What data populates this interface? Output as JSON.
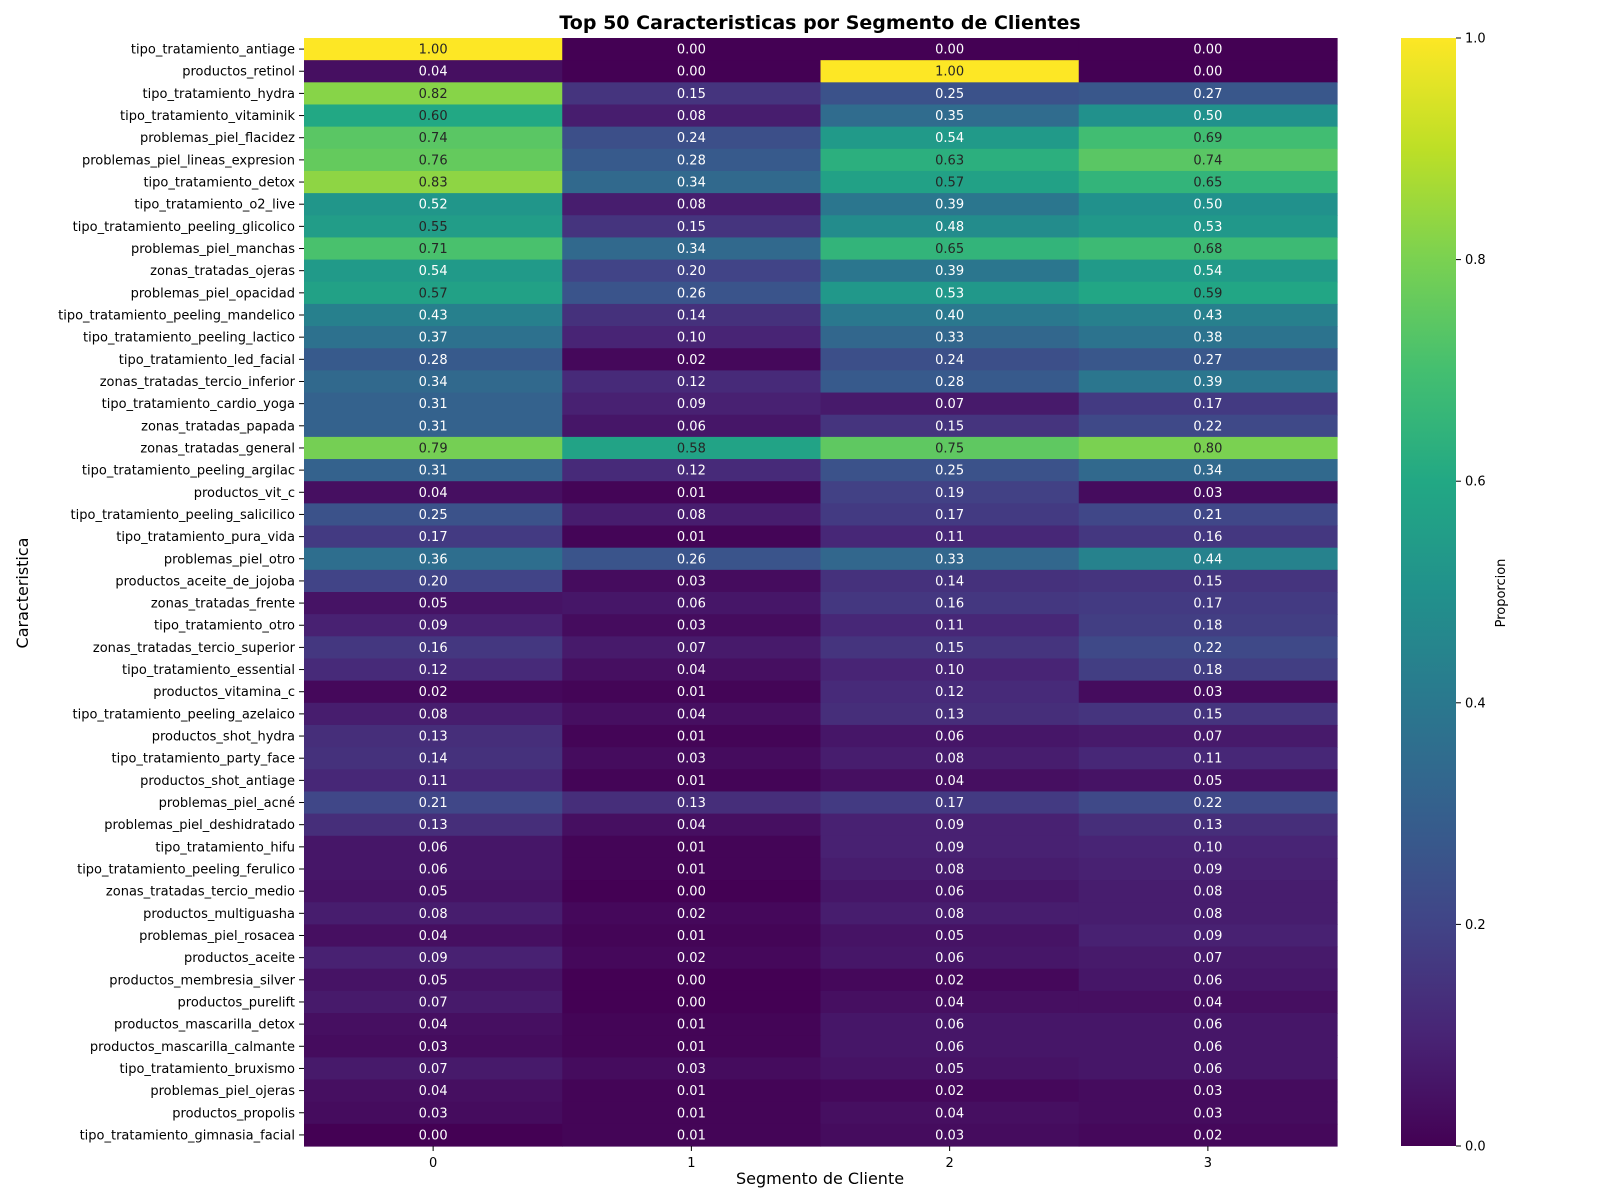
{
  "chart_data": {
    "type": "heatmap",
    "title": "Top 50 Caracteristicas por Segmento de Clientes",
    "xlabel": "Segmento de Cliente",
    "ylabel": "Caracteristica",
    "colorbar_label": "Proporcion",
    "colormap": "viridis",
    "value_range": [
      0,
      1
    ],
    "colorbar_ticks": [
      "0.0",
      "0.2",
      "0.4",
      "0.6",
      "0.8",
      "1.0"
    ],
    "x_categories": [
      "0",
      "1",
      "2",
      "3"
    ],
    "y_categories": [
      "tipo_tratamiento_antiage",
      "productos_retinol",
      "tipo_tratamiento_hydra",
      "tipo_tratamiento_vitaminik",
      "problemas_piel_flacidez",
      "problemas_piel_lineas_expresion",
      "tipo_tratamiento_detox",
      "tipo_tratamiento_o2_live",
      "tipo_tratamiento_peeling_glicolico",
      "problemas_piel_manchas",
      "zonas_tratadas_ojeras",
      "problemas_piel_opacidad",
      "tipo_tratamiento_peeling_mandelico",
      "tipo_tratamiento_peeling_lactico",
      "tipo_tratamiento_led_facial",
      "zonas_tratadas_tercio_inferior",
      "tipo_tratamiento_cardio_yoga",
      "zonas_tratadas_papada",
      "zonas_tratadas_general",
      "tipo_tratamiento_peeling_argilac",
      "productos_vit_c",
      "tipo_tratamiento_peeling_salicilico",
      "tipo_tratamiento_pura_vida",
      "problemas_piel_otro",
      "productos_aceite_de_jojoba",
      "zonas_tratadas_frente",
      "tipo_tratamiento_otro",
      "zonas_tratadas_tercio_superior",
      "tipo_tratamiento_essential",
      "productos_vitamina_c",
      "tipo_tratamiento_peeling_azelaico",
      "productos_shot_hydra",
      "tipo_tratamiento_party_face",
      "productos_shot_antiage",
      "problemas_piel_acné",
      "problemas_piel_deshidratado",
      "tipo_tratamiento_hifu",
      "tipo_tratamiento_peeling_ferulico",
      "zonas_tratadas_tercio_medio",
      "productos_multiguasha",
      "problemas_piel_rosacea",
      "productos_aceite",
      "productos_membresia_silver",
      "productos_purelift",
      "productos_mascarilla_detox",
      "productos_mascarilla_calmante",
      "tipo_tratamiento_bruxismo",
      "problemas_piel_ojeras",
      "productos_propolis",
      "tipo_tratamiento_gimnasia_facial"
    ],
    "values": [
      [
        1.0,
        0.0,
        0.0,
        0.0
      ],
      [
        0.04,
        0.0,
        1.0,
        0.0
      ],
      [
        0.82,
        0.15,
        0.25,
        0.27
      ],
      [
        0.6,
        0.08,
        0.35,
        0.5
      ],
      [
        0.74,
        0.24,
        0.54,
        0.69
      ],
      [
        0.76,
        0.28,
        0.63,
        0.74
      ],
      [
        0.83,
        0.34,
        0.57,
        0.65
      ],
      [
        0.52,
        0.08,
        0.39,
        0.5
      ],
      [
        0.55,
        0.15,
        0.48,
        0.53
      ],
      [
        0.71,
        0.34,
        0.65,
        0.68
      ],
      [
        0.54,
        0.2,
        0.39,
        0.54
      ],
      [
        0.57,
        0.26,
        0.53,
        0.59
      ],
      [
        0.43,
        0.14,
        0.4,
        0.43
      ],
      [
        0.37,
        0.1,
        0.33,
        0.38
      ],
      [
        0.28,
        0.02,
        0.24,
        0.27
      ],
      [
        0.34,
        0.12,
        0.28,
        0.39
      ],
      [
        0.31,
        0.09,
        0.07,
        0.17
      ],
      [
        0.31,
        0.06,
        0.15,
        0.22
      ],
      [
        0.79,
        0.58,
        0.75,
        0.8
      ],
      [
        0.31,
        0.12,
        0.25,
        0.34
      ],
      [
        0.04,
        0.01,
        0.19,
        0.03
      ],
      [
        0.25,
        0.08,
        0.17,
        0.21
      ],
      [
        0.17,
        0.01,
        0.11,
        0.16
      ],
      [
        0.36,
        0.26,
        0.33,
        0.44
      ],
      [
        0.2,
        0.03,
        0.14,
        0.15
      ],
      [
        0.05,
        0.06,
        0.16,
        0.17
      ],
      [
        0.09,
        0.03,
        0.11,
        0.18
      ],
      [
        0.16,
        0.07,
        0.15,
        0.22
      ],
      [
        0.12,
        0.04,
        0.1,
        0.18
      ],
      [
        0.02,
        0.01,
        0.12,
        0.03
      ],
      [
        0.08,
        0.04,
        0.13,
        0.15
      ],
      [
        0.13,
        0.01,
        0.06,
        0.07
      ],
      [
        0.14,
        0.03,
        0.08,
        0.11
      ],
      [
        0.11,
        0.01,
        0.04,
        0.05
      ],
      [
        0.21,
        0.13,
        0.17,
        0.22
      ],
      [
        0.13,
        0.04,
        0.09,
        0.13
      ],
      [
        0.06,
        0.01,
        0.09,
        0.1
      ],
      [
        0.06,
        0.01,
        0.08,
        0.09
      ],
      [
        0.05,
        0.0,
        0.06,
        0.08
      ],
      [
        0.08,
        0.02,
        0.08,
        0.08
      ],
      [
        0.04,
        0.01,
        0.05,
        0.09
      ],
      [
        0.09,
        0.02,
        0.06,
        0.07
      ],
      [
        0.05,
        0.0,
        0.02,
        0.06
      ],
      [
        0.07,
        0.0,
        0.04,
        0.04
      ],
      [
        0.04,
        0.01,
        0.06,
        0.06
      ],
      [
        0.03,
        0.01,
        0.06,
        0.06
      ],
      [
        0.07,
        0.03,
        0.05,
        0.06
      ],
      [
        0.04,
        0.01,
        0.02,
        0.03
      ],
      [
        0.03,
        0.01,
        0.04,
        0.03
      ],
      [
        0.0,
        0.01,
        0.03,
        0.02
      ]
    ],
    "value_format": "0.00",
    "grid": false,
    "legend": "colorbar right"
  }
}
